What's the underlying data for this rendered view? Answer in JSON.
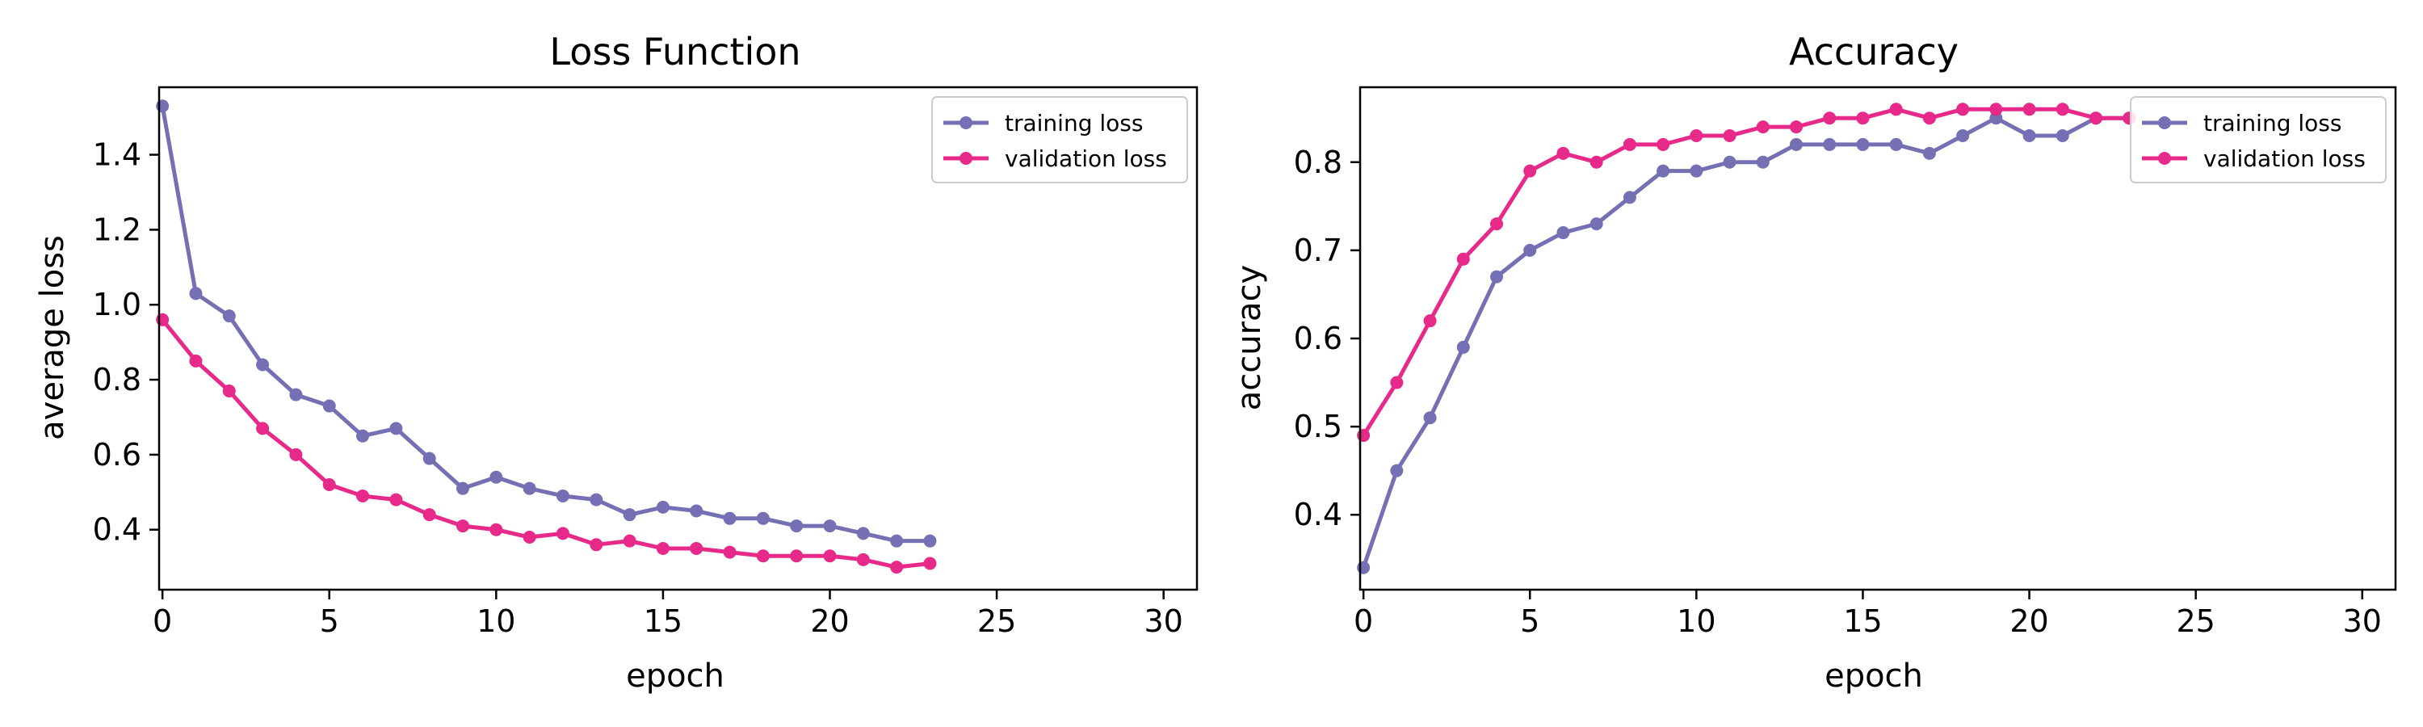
{
  "chart_data": [
    {
      "type": "line",
      "title": "Loss Function",
      "xlabel": "epoch",
      "ylabel": "average loss",
      "xlim": [
        -0.1,
        31
      ],
      "ylim": [
        0.24,
        1.58
      ],
      "xticks": [
        0,
        5,
        10,
        15,
        20,
        25,
        30
      ],
      "yticks": [
        0.4,
        0.6,
        0.8,
        1.0,
        1.2,
        1.4
      ],
      "ytick_labels": [
        "0.4",
        "0.6",
        "0.8",
        "1.0",
        "1.2",
        "1.4"
      ],
      "legend_position": "top-right",
      "x": [
        0,
        1,
        2,
        3,
        4,
        5,
        6,
        7,
        8,
        9,
        10,
        11,
        12,
        13,
        14,
        15,
        16,
        17,
        18,
        19,
        20,
        21,
        22,
        23
      ],
      "series": [
        {
          "name": "training loss",
          "color": "#7570b3",
          "values": [
            1.53,
            1.03,
            0.97,
            0.84,
            0.76,
            0.73,
            0.65,
            0.67,
            0.59,
            0.51,
            0.54,
            0.51,
            0.49,
            0.48,
            0.44,
            0.46,
            0.45,
            0.43,
            0.43,
            0.41,
            0.41,
            0.39,
            0.37,
            0.37
          ]
        },
        {
          "name": "validation loss",
          "color": "#e7298a",
          "values": [
            0.96,
            0.85,
            0.77,
            0.67,
            0.6,
            0.52,
            0.49,
            0.48,
            0.44,
            0.41,
            0.4,
            0.38,
            0.39,
            0.36,
            0.37,
            0.35,
            0.35,
            0.34,
            0.33,
            0.33,
            0.33,
            0.32,
            0.3,
            0.31
          ]
        }
      ]
    },
    {
      "type": "line",
      "title": "Accuracy",
      "xlabel": "epoch",
      "ylabel": "accuracy",
      "xlim": [
        -0.1,
        31
      ],
      "ylim": [
        0.315,
        0.885
      ],
      "xticks": [
        0,
        5,
        10,
        15,
        20,
        25,
        30
      ],
      "yticks": [
        0.4,
        0.5,
        0.6,
        0.7,
        0.8
      ],
      "ytick_labels": [
        "0.4",
        "0.5",
        "0.6",
        "0.7",
        "0.8"
      ],
      "legend_position": "top-right",
      "x": [
        0,
        1,
        2,
        3,
        4,
        5,
        6,
        7,
        8,
        9,
        10,
        11,
        12,
        13,
        14,
        15,
        16,
        17,
        18,
        19,
        20,
        21,
        22,
        23
      ],
      "series": [
        {
          "name": "training loss",
          "color": "#7570b3",
          "values": [
            0.34,
            0.45,
            0.51,
            0.59,
            0.67,
            0.7,
            0.72,
            0.73,
            0.76,
            0.79,
            0.79,
            0.8,
            0.8,
            0.82,
            0.82,
            0.82,
            0.82,
            0.81,
            0.83,
            0.85,
            0.83,
            0.83,
            0.85,
            0.85
          ]
        },
        {
          "name": "validation loss",
          "color": "#e7298a",
          "values": [
            0.49,
            0.55,
            0.62,
            0.69,
            0.73,
            0.79,
            0.81,
            0.8,
            0.82,
            0.82,
            0.83,
            0.83,
            0.84,
            0.84,
            0.85,
            0.85,
            0.86,
            0.85,
            0.86,
            0.86,
            0.86,
            0.86,
            0.85,
            0.85
          ]
        }
      ]
    }
  ]
}
